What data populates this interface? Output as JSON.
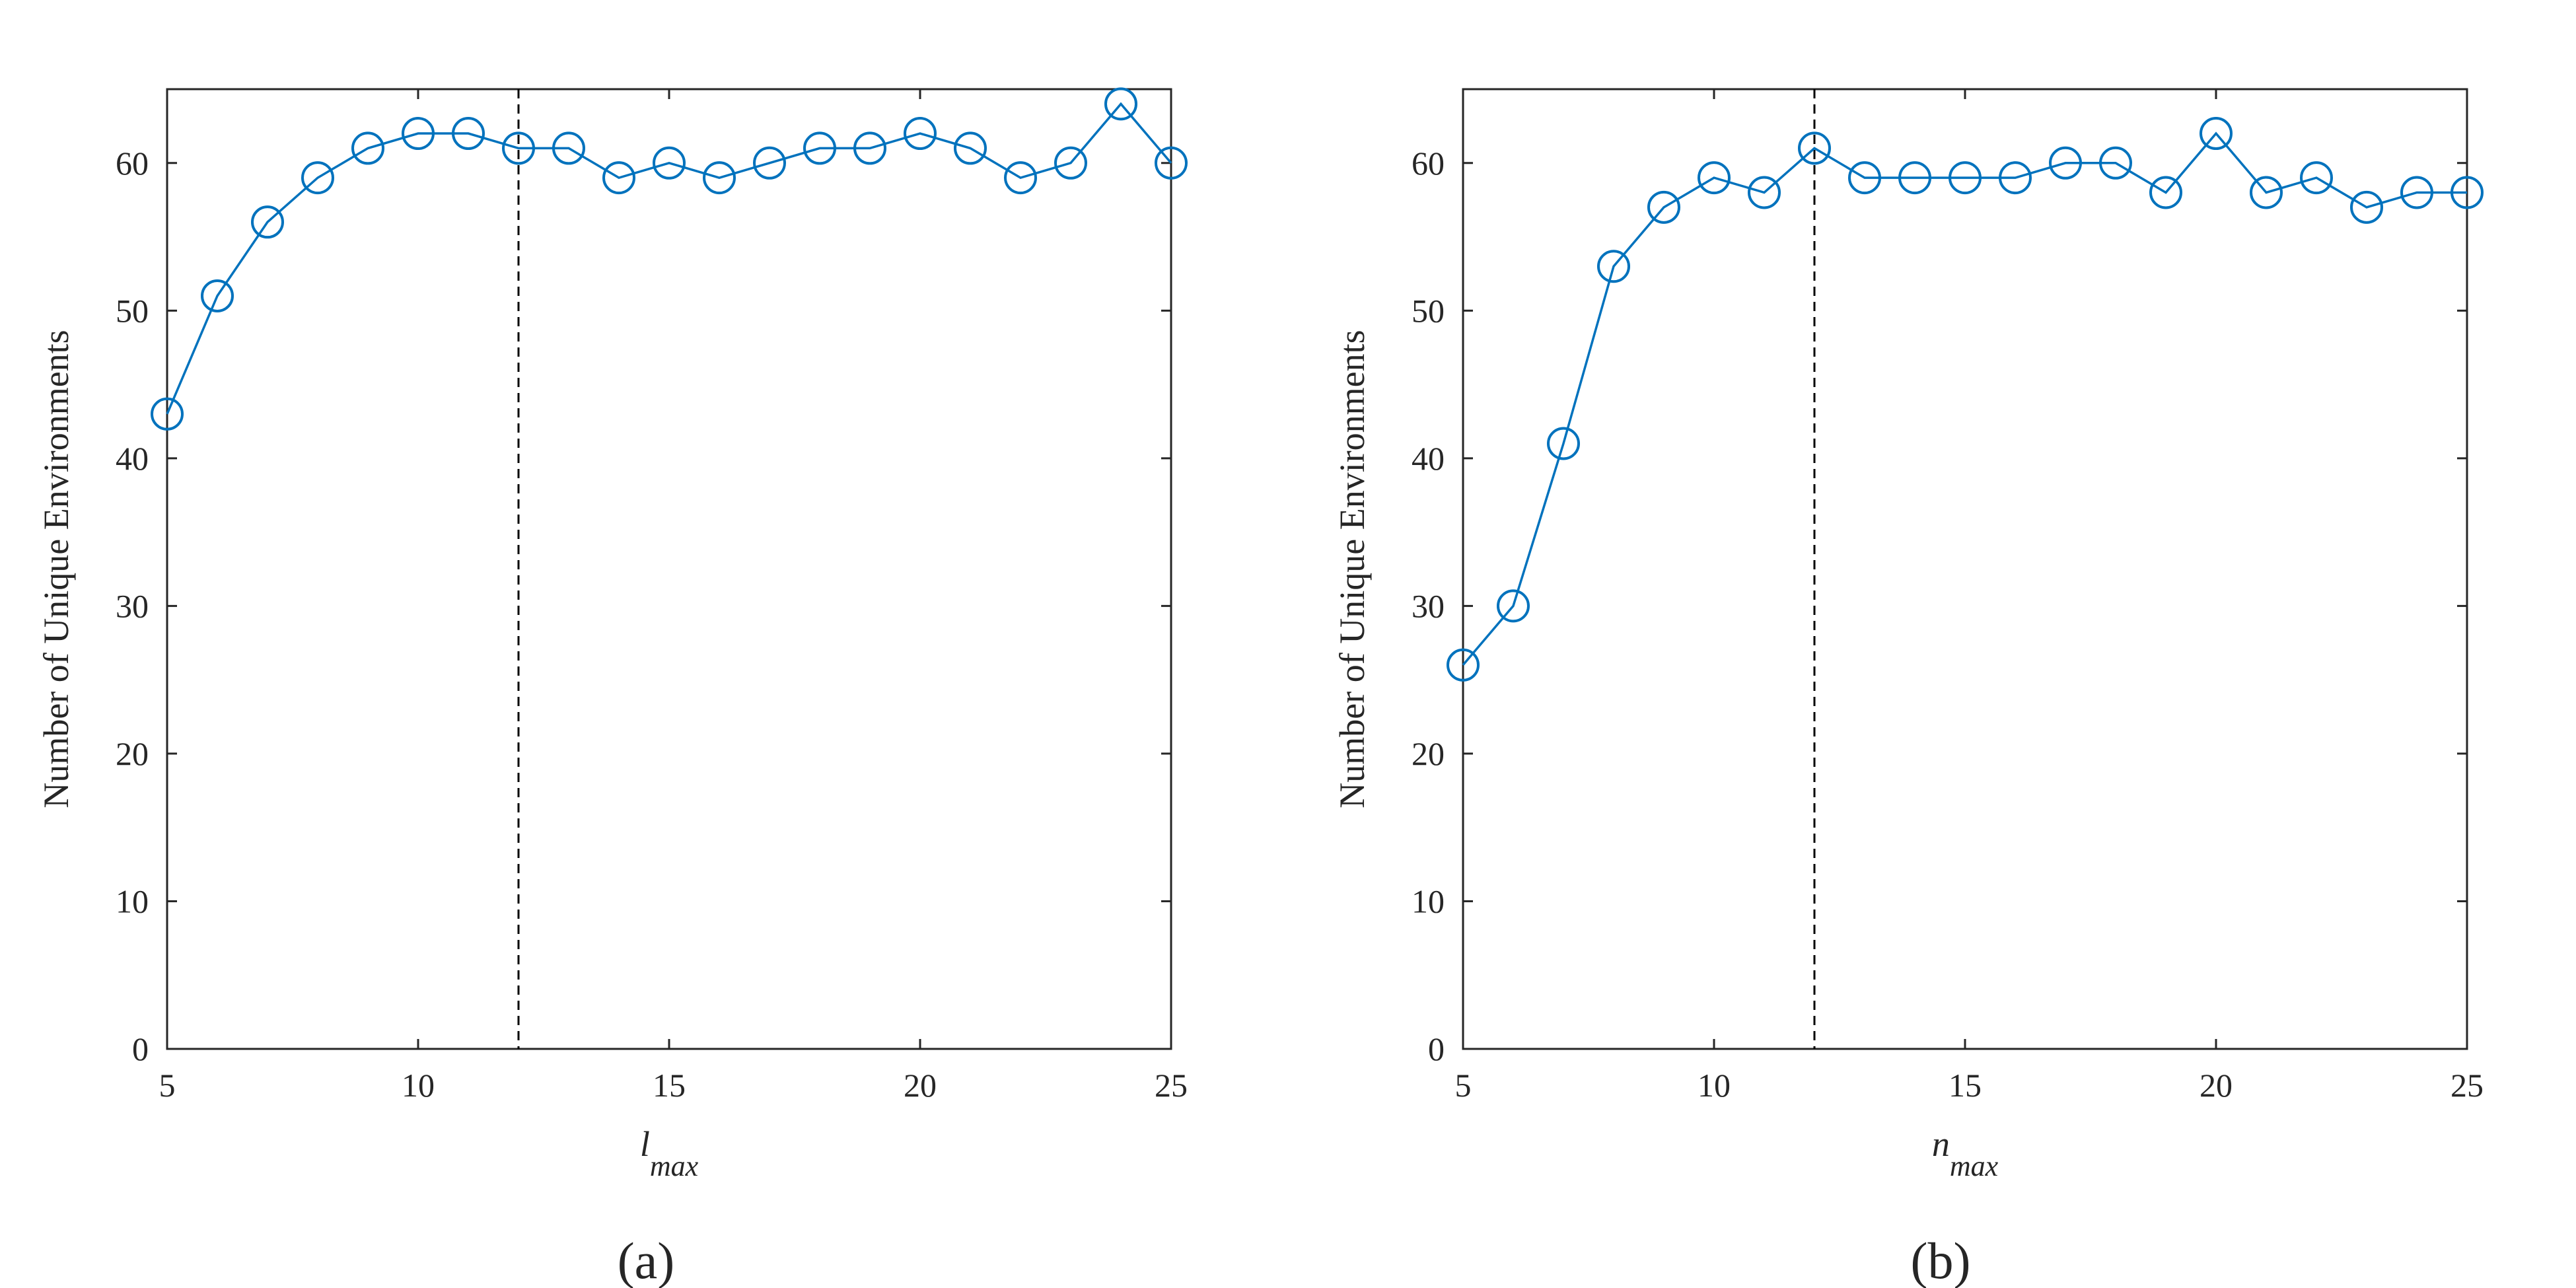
{
  "chart_data": [
    {
      "type": "line",
      "panel_label": "(a)",
      "x": [
        5,
        6,
        7,
        8,
        9,
        10,
        11,
        12,
        13,
        14,
        15,
        16,
        17,
        18,
        19,
        20,
        21,
        22,
        23,
        24,
        25
      ],
      "series": [
        {
          "name": "Number of Unique Environments",
          "values": [
            43,
            51,
            56,
            59,
            61,
            62,
            62,
            61,
            61,
            59,
            60,
            59,
            60,
            61,
            61,
            62,
            61,
            59,
            60,
            64,
            60
          ]
        }
      ],
      "xlabel_main": "l",
      "xlabel_sub": "max",
      "ylabel": "Number of Unique Environments",
      "xlim": [
        5,
        25
      ],
      "ylim": [
        0,
        65
      ],
      "xticks": [
        5,
        10,
        15,
        20,
        25
      ],
      "yticks": [
        0,
        10,
        20,
        30,
        40,
        50,
        60
      ],
      "xtick_labels": [
        "5",
        "10",
        "15",
        "20",
        "25"
      ],
      "ytick_labels": [
        "0",
        "10",
        "20",
        "30",
        "40",
        "50",
        "60"
      ],
      "vline_x": 12,
      "marker": "circle",
      "color": "#0072BD",
      "grid": false
    },
    {
      "type": "line",
      "panel_label": "(b)",
      "x": [
        5,
        6,
        7,
        8,
        9,
        10,
        11,
        12,
        13,
        14,
        15,
        16,
        17,
        18,
        19,
        20,
        21,
        22,
        23,
        24,
        25
      ],
      "series": [
        {
          "name": "Number of Unique Environments",
          "values": [
            26,
            30,
            41,
            53,
            57,
            59,
            58,
            61,
            59,
            59,
            59,
            59,
            60,
            60,
            58,
            62,
            58,
            59,
            57,
            58,
            58
          ]
        }
      ],
      "xlabel_main": "n",
      "xlabel_sub": "max",
      "ylabel": "Number of Unique Environments",
      "xlim": [
        5,
        25
      ],
      "ylim": [
        0,
        65
      ],
      "xticks": [
        5,
        10,
        15,
        20,
        25
      ],
      "yticks": [
        0,
        10,
        20,
        30,
        40,
        50,
        60
      ],
      "xtick_labels": [
        "5",
        "10",
        "15",
        "20",
        "25"
      ],
      "ytick_labels": [
        "0",
        "10",
        "20",
        "30",
        "40",
        "50",
        "60"
      ],
      "vline_x": 12,
      "marker": "circle",
      "color": "#0072BD",
      "grid": false
    }
  ]
}
